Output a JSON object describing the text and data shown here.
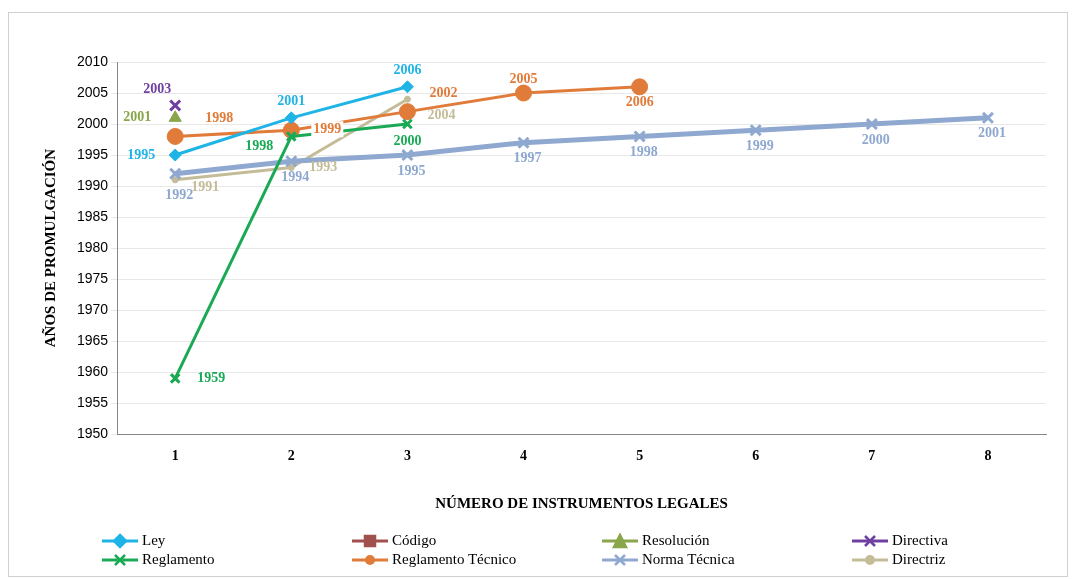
{
  "chart_data": {
    "type": "line",
    "xlabel": "NÚMERO DE INSTRUMENTOS LEGALES",
    "ylabel": "AÑOS DE PROMULGACIÓN",
    "categories": [
      "1",
      "2",
      "3",
      "4",
      "5",
      "6",
      "7",
      "8"
    ],
    "ylim": [
      1950,
      2010
    ],
    "yticks": [
      1950,
      1955,
      1960,
      1965,
      1970,
      1975,
      1980,
      1985,
      1990,
      1995,
      2000,
      2005,
      2010
    ],
    "grid": "y",
    "legend": "bottom",
    "data_labels": true,
    "line_style": "solid",
    "series": [
      {
        "name": "Ley",
        "color": "#1fb4e6",
        "marker": "diamond",
        "values": [
          1995,
          2001,
          2006,
          null,
          null,
          null,
          null,
          null
        ]
      },
      {
        "name": "Código",
        "color": "#a0504d",
        "marker": "square",
        "values": [
          null,
          null,
          null,
          null,
          null,
          null,
          null,
          null
        ]
      },
      {
        "name": "Resolución",
        "color": "#8aa64a",
        "marker": "triangle",
        "values": [
          2001,
          null,
          null,
          null,
          null,
          null,
          null,
          null
        ]
      },
      {
        "name": "Directiva",
        "color": "#7040a0",
        "marker": "cross",
        "values": [
          2003,
          null,
          null,
          null,
          null,
          null,
          null,
          null
        ]
      },
      {
        "name": "Reglamento",
        "color": "#1aaa55",
        "marker": "cross",
        "values": [
          1959,
          1998,
          2000,
          null,
          null,
          null,
          null,
          null
        ]
      },
      {
        "name": "Reglamento Técnico",
        "color": "#e07b39",
        "marker": "circle",
        "values": [
          1998,
          1999,
          2002,
          2005,
          2006,
          null,
          null,
          null
        ]
      },
      {
        "name": "Norma Técnica",
        "color": "#8fa8d0",
        "marker": "cross",
        "values": [
          1992,
          1994,
          1995,
          1997,
          1998,
          1999,
          2000,
          2001
        ]
      },
      {
        "name": "Directriz",
        "color": "#c4bc98",
        "marker": "circle",
        "values": [
          1991,
          1993,
          2004,
          null,
          null,
          null,
          null,
          null
        ]
      }
    ]
  }
}
